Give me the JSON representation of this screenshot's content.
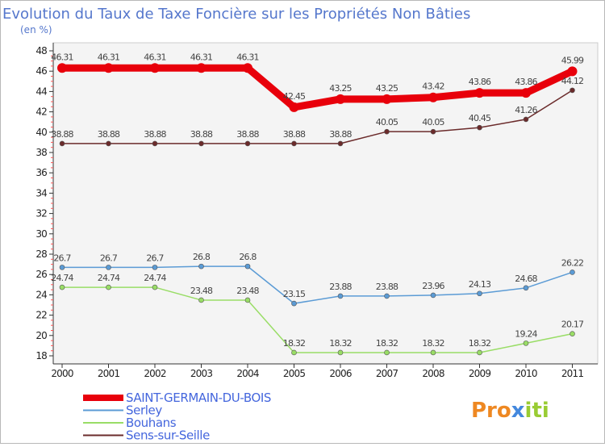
{
  "chart_data": {
    "type": "line",
    "title": "Evolution du Taux de Taxe Foncière sur les Propriétés Non Bâties",
    "subtitle": "(en %)",
    "xlabel": "",
    "ylabel": "",
    "ylim": [
      18,
      48
    ],
    "yticks": [
      "18",
      "20",
      "22",
      "24",
      "26",
      "28",
      "30",
      "32",
      "34",
      "36",
      "38",
      "40",
      "42",
      "44",
      "46",
      "48"
    ],
    "grid": false,
    "legend_position": "bottom-left",
    "categories": [
      "2000",
      "2001",
      "2002",
      "2003",
      "2004",
      "2005",
      "2006",
      "2007",
      "2008",
      "2009",
      "2010",
      "2011"
    ],
    "series": [
      {
        "name": "SAINT-GERMAIN-DU-BOIS",
        "color": "#e8000b",
        "values": [
          46.31,
          46.31,
          46.31,
          46.31,
          46.31,
          42.45,
          43.25,
          43.25,
          43.42,
          43.86,
          43.86,
          45.99
        ],
        "labels": [
          "46.31",
          "46.31",
          "46.31",
          "46.31",
          "46.31",
          "42.45",
          "43.25",
          "43.25",
          "43.42",
          "43.86",
          "43.86",
          "45.99"
        ]
      },
      {
        "name": "Serley",
        "color": "#5b9bd5",
        "values": [
          26.7,
          26.7,
          26.7,
          26.8,
          26.8,
          23.15,
          23.88,
          23.88,
          23.96,
          24.13,
          24.68,
          26.22
        ],
        "labels": [
          "26.7",
          "26.7",
          "26.7",
          "26.8",
          "26.8",
          "23.15",
          "23.88",
          "23.88",
          "23.96",
          "24.13",
          "24.68",
          "26.22"
        ]
      },
      {
        "name": "Bouhans",
        "color": "#99dd66",
        "values": [
          24.74,
          24.74,
          24.74,
          23.48,
          23.48,
          18.32,
          18.32,
          18.32,
          18.32,
          18.32,
          19.24,
          20.17
        ],
        "labels": [
          "24.74",
          "24.74",
          "24.74",
          "23.48",
          "23.48",
          "18.32",
          "18.32",
          "18.32",
          "18.32",
          "18.32",
          "19.24",
          "20.17"
        ]
      },
      {
        "name": "Sens-sur-Seille",
        "color": "#6b2b2b",
        "values": [
          38.88,
          38.88,
          38.88,
          38.88,
          38.88,
          38.88,
          38.88,
          40.05,
          40.05,
          40.45,
          41.26,
          44.12
        ],
        "labels": [
          "38.88",
          "38.88",
          "38.88",
          "38.88",
          "38.88",
          "38.88",
          "38.88",
          "40.05",
          "40.05",
          "40.45",
          "41.26",
          "44.12"
        ]
      }
    ]
  },
  "logo": {
    "part1": "Pro",
    "part2": "x",
    "part3": "iti"
  }
}
